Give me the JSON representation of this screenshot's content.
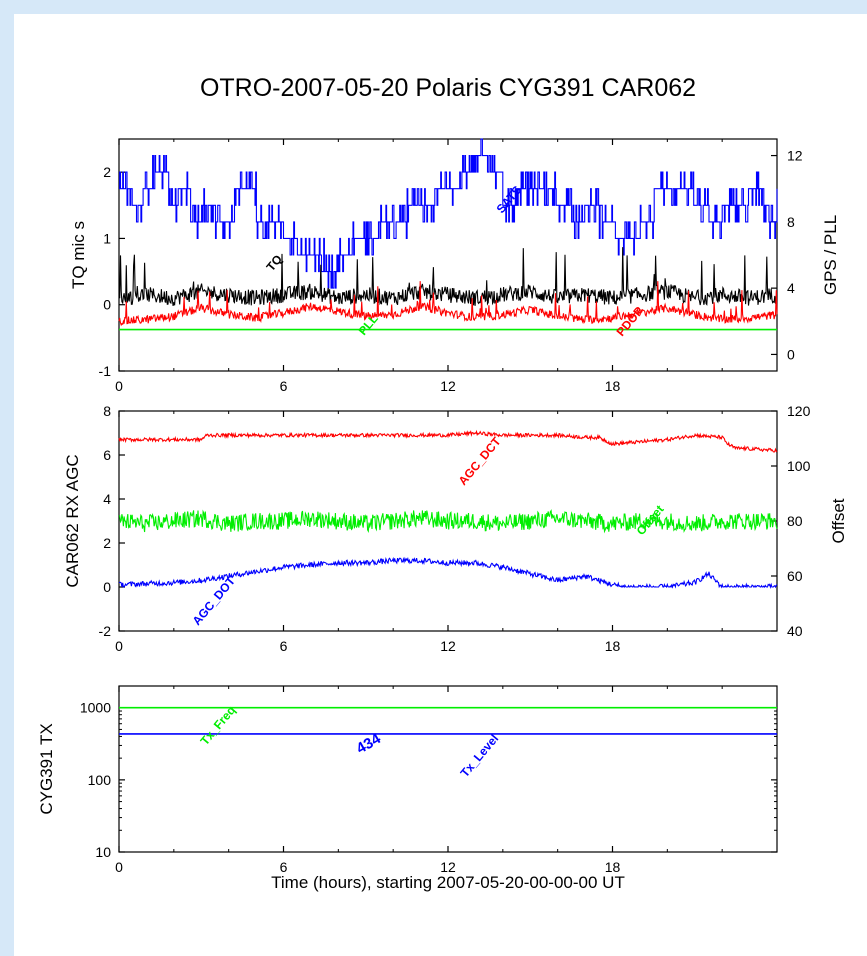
{
  "title": "OTRO-2007-05-20 Polaris CYG391 CAR062",
  "xlabel": "Time (hours), starting 2007-05-20-00-00-00 UT",
  "colors": {
    "blue": "#0000ff",
    "red": "#ff0000",
    "green": "#00ee00",
    "black": "#000000",
    "background": "#d6e8f8"
  },
  "chart_data": [
    {
      "type": "line",
      "xlim": [
        0,
        24
      ],
      "xticks": [
        0,
        6,
        12,
        18
      ],
      "ylabel": "TQ mic s",
      "ylim": [
        -1,
        2.5
      ],
      "yticks": [
        -1,
        0,
        1,
        2
      ],
      "y2label": "GPS / PLL",
      "y2lim": [
        -1,
        13
      ],
      "y2ticks": [
        0,
        4,
        8,
        12
      ],
      "series": [
        {
          "name": "SATS",
          "axis": "right",
          "color": "#0000ff",
          "x": [
            0,
            0.5,
            0.9,
            1.2,
            1.8,
            2.2,
            2.6,
            3,
            3.5,
            4.2,
            5,
            6,
            6.5,
            7,
            7.5,
            8,
            8.5,
            9,
            9.5,
            10,
            10.5,
            11,
            11.5,
            12,
            12.5,
            13,
            13.5,
            14,
            14.5,
            15,
            15.5,
            16,
            16.5,
            17,
            17.5,
            18,
            18.5,
            19,
            19.5,
            20,
            20.5,
            21,
            21.5,
            22,
            22.5,
            23,
            23.5,
            24
          ],
          "values": [
            10,
            9,
            10,
            11,
            9,
            10,
            8,
            9,
            8,
            10,
            8,
            7,
            6,
            6,
            5,
            6,
            7,
            7,
            8,
            8,
            9,
            9,
            10,
            10,
            11,
            12,
            11,
            9,
            10,
            10,
            10,
            9,
            8,
            9,
            8,
            7,
            7,
            8,
            10,
            10,
            10,
            9,
            8,
            9,
            9,
            10,
            8,
            9
          ]
        },
        {
          "name": "TQ",
          "axis": "left",
          "color": "#000000",
          "x": [
            0,
            1,
            2,
            3,
            4,
            5,
            6,
            7,
            8,
            9,
            10,
            11,
            12,
            13,
            14,
            15,
            16,
            17,
            18,
            19,
            20,
            21,
            22,
            23,
            24
          ],
          "values": [
            0.1,
            0.15,
            0.1,
            0.2,
            0.15,
            0.1,
            0.15,
            0.2,
            0.1,
            0.15,
            0.1,
            0.2,
            0.15,
            0.1,
            0.15,
            0.2,
            0.1,
            0.15,
            0.1,
            0.15,
            0.2,
            0.1,
            0.15,
            0.1,
            0.15
          ]
        },
        {
          "name": "PDOP",
          "axis": "right",
          "color": "#ff0000",
          "x": [
            0,
            1,
            2,
            3,
            4,
            5,
            6,
            7,
            8,
            9,
            10,
            11,
            12,
            13,
            14,
            15,
            16,
            17,
            18,
            19,
            20,
            21,
            22,
            23,
            24
          ],
          "values": [
            2,
            2.1,
            2.3,
            2.8,
            2.4,
            2.2,
            2.5,
            2.9,
            2.6,
            2.3,
            2.4,
            2.9,
            2.5,
            2.2,
            2.4,
            2.7,
            2.3,
            2.1,
            2.2,
            2.5,
            2.8,
            2.4,
            2.1,
            2.2,
            2.4
          ]
        },
        {
          "name": "PLL",
          "axis": "right",
          "color": "#00ee00",
          "x": [
            0,
            24
          ],
          "values": [
            1.5,
            1.5
          ]
        }
      ]
    },
    {
      "type": "line",
      "xlim": [
        0,
        24
      ],
      "xticks": [
        0,
        6,
        12,
        18
      ],
      "ylabel": "CAR062 RX AGC",
      "ylim": [
        -2,
        8
      ],
      "yticks": [
        -2,
        0,
        2,
        4,
        6,
        8
      ],
      "y2label": "Offset",
      "y2lim": [
        40,
        120
      ],
      "y2ticks": [
        40,
        60,
        80,
        100,
        120
      ],
      "series": [
        {
          "name": "AGC_DCT",
          "axis": "left",
          "color": "#ff0000",
          "x": [
            0,
            0.5,
            1,
            3,
            3.2,
            12,
            13,
            14,
            14.5,
            16,
            17,
            17.5,
            18,
            20,
            21,
            22,
            22.2,
            22.5,
            22.8,
            24
          ],
          "values": [
            6.7,
            6.7,
            6.7,
            6.7,
            6.9,
            6.9,
            7.0,
            6.9,
            6.9,
            6.9,
            6.8,
            6.8,
            6.5,
            6.7,
            6.9,
            6.8,
            6.5,
            6.3,
            6.3,
            6.2
          ]
        },
        {
          "name": "Offset",
          "axis": "right",
          "color": "#00ee00",
          "x": [
            0,
            1,
            2,
            3,
            4,
            5,
            6,
            7,
            8,
            9,
            10,
            11,
            12,
            13,
            14,
            15,
            16,
            17,
            18,
            19,
            20,
            21,
            22,
            23,
            24
          ],
          "values": [
            80,
            79,
            80,
            81,
            79,
            80,
            80,
            81,
            80,
            79,
            80,
            81,
            80,
            80,
            79,
            80,
            81,
            80,
            79,
            80,
            80,
            79,
            80,
            80,
            80
          ]
        },
        {
          "name": "AGC_DOT",
          "axis": "left",
          "color": "#0000ff",
          "x": [
            0,
            2,
            3,
            4,
            5,
            6,
            7,
            8,
            9,
            10,
            11,
            12,
            13,
            14,
            15,
            16,
            17,
            17.5,
            18,
            18.5,
            19,
            20,
            21,
            21.5,
            22,
            24
          ],
          "values": [
            0.1,
            0.2,
            0.3,
            0.5,
            0.7,
            0.9,
            1.0,
            1.1,
            1.1,
            1.2,
            1.2,
            1.1,
            1.1,
            0.9,
            0.6,
            0.3,
            0.5,
            0.3,
            0.1,
            0,
            0,
            0,
            0.2,
            0.6,
            0,
            0
          ]
        }
      ]
    },
    {
      "type": "line",
      "xlim": [
        0,
        24
      ],
      "xticks": [
        0,
        6,
        12,
        18
      ],
      "ylabel": "CYG391 TX",
      "yscale": "log",
      "ylim": [
        10,
        2000
      ],
      "yticks": [
        10,
        100,
        1000
      ],
      "annotations": [
        "434"
      ],
      "series": [
        {
          "name": "Tx_Freq",
          "color": "#00ee00",
          "x": [
            0,
            24
          ],
          "values": [
            1000,
            1000
          ]
        },
        {
          "name": "Tx_Level",
          "color": "#0000ff",
          "x": [
            0,
            24
          ],
          "values": [
            434,
            434
          ]
        }
      ]
    }
  ]
}
